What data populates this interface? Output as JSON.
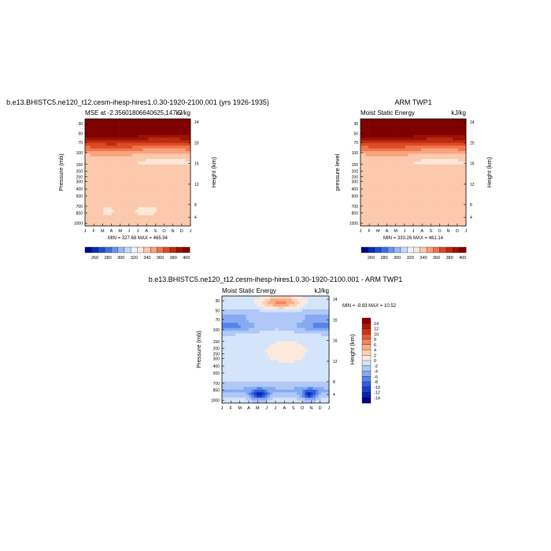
{
  "chart_data": [
    {
      "type": "heatmap",
      "panel_title": "b.e13.BHISTC5.ne120_t12.cesm-ihesp-hires1.0.30-1920-2100.001 (yrs 1926-1935)",
      "left_label": "MSE at -2.35601806640625,147.5",
      "right_label": "kJ/kg",
      "ylabel": "Pressure (mb)",
      "ylabel_right": "Height (km)",
      "x_ticks": [
        "J",
        "F",
        "M",
        "A",
        "M",
        "J",
        "J",
        "A",
        "S",
        "O",
        "N",
        "D",
        "J"
      ],
      "y_ticks": [
        "30",
        "50",
        "70",
        "100",
        "150",
        "200",
        "250",
        "300",
        "400",
        "500",
        "700",
        "850",
        "1000"
      ],
      "height_ticks": [
        "24",
        "20",
        "16",
        "12",
        "8",
        "4"
      ],
      "stats": "MIN = 327.68 MAX = 465.94",
      "palette": "absolute",
      "field": "mse_model"
    },
    {
      "type": "heatmap",
      "panel_title": "ARM TWP1",
      "left_label": "Moist Static Energy",
      "right_label": "kJ/kg",
      "ylabel": "pressure level",
      "ylabel_right": "Height (km)",
      "x_ticks": [
        "J",
        "F",
        "M",
        "A",
        "M",
        "J",
        "J",
        "A",
        "S",
        "O",
        "N",
        "D",
        "J"
      ],
      "y_ticks": [
        "30",
        "50",
        "70",
        "100",
        "150",
        "200",
        "250",
        "300",
        "400",
        "500",
        "700",
        "850",
        "1000"
      ],
      "height_ticks": [
        "24",
        "20",
        "16",
        "12",
        "8",
        "4"
      ],
      "stats": "MIN = 333.26 MAX = 461.14",
      "palette": "absolute",
      "field": "mse_obs"
    },
    {
      "type": "heatmap",
      "panel_title": "b.e13.BHISTC5.ne120_t12.cesm-ihesp-hires1.0.30-1920-2100.001 - ARM TWP1",
      "left_label": "Moist Static Energy",
      "right_label": "kJ/kg",
      "ylabel": "Pressure (mb)",
      "ylabel_right": "Height (km)",
      "x_ticks": [
        "J",
        "F",
        "M",
        "A",
        "M",
        "J",
        "J",
        "A",
        "S",
        "O",
        "N",
        "D",
        "J"
      ],
      "y_ticks": [
        "30",
        "50",
        "70",
        "100",
        "150",
        "200",
        "250",
        "300",
        "400",
        "500",
        "700",
        "850",
        "1000"
      ],
      "height_ticks": [
        "24",
        "20",
        "16",
        "12",
        "8",
        "4"
      ],
      "stats": "MIN = -9.83 MAX = 10.52",
      "palette": "difference",
      "field": "mse_diff"
    }
  ],
  "colorbars": {
    "absolute": {
      "labels": [
        "260",
        "280",
        "300",
        "320",
        "340",
        "360",
        "380",
        "400"
      ],
      "colors": [
        "#000090",
        "#0a2cb4",
        "#1f4fd0",
        "#3b6fe0",
        "#6a93ee",
        "#9ab8f5",
        "#c4d8fb",
        "#eef3fd",
        "#fde8d8",
        "#fcc9ad",
        "#f9a27c",
        "#f0744c",
        "#dc4a27",
        "#bf2a10",
        "#9a1204",
        "#800000"
      ],
      "bounds": [
        250,
        260,
        270,
        280,
        290,
        300,
        310,
        320,
        330,
        340,
        350,
        360,
        370,
        380,
        390,
        400
      ]
    },
    "difference": {
      "labels": [
        "14",
        "12",
        "10",
        "8",
        "6",
        "4",
        "2",
        "0",
        "-2",
        "-4",
        "-6",
        "-8",
        "-10",
        "-12",
        "-14"
      ],
      "colors": [
        "#00008a",
        "#0a20b0",
        "#1a40cc",
        "#2f60dc",
        "#5585e8",
        "#85aaf2",
        "#b0c8f8",
        "#d4e4fb",
        "#fde9dc",
        "#fcd0b8",
        "#f9ad8a",
        "#f3845e",
        "#e45934",
        "#cd3314",
        "#ad1707",
        "#900000"
      ],
      "bounds": [
        -14,
        -12,
        -10,
        -8,
        -6,
        -4,
        -2,
        0,
        2,
        4,
        6,
        8,
        10,
        12,
        14
      ]
    }
  }
}
